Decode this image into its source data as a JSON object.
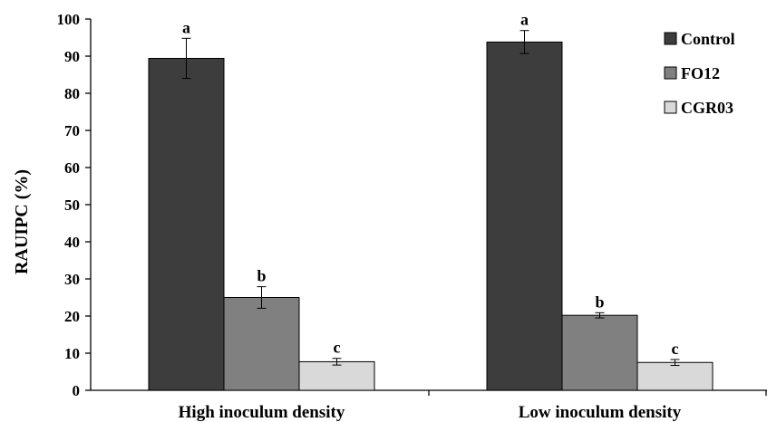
{
  "chart_data": {
    "type": "bar",
    "title": "",
    "xlabel": "",
    "ylabel": "RAUIPC (%)",
    "ylim": [
      0,
      100
    ],
    "yticks": [
      0,
      10,
      20,
      30,
      40,
      50,
      60,
      70,
      80,
      90,
      100
    ],
    "grid": false,
    "legend_position": "top-right",
    "categories": [
      "High inoculum density",
      "Low inoculum density"
    ],
    "series": [
      {
        "name": "Control",
        "color": "#3d3d3d",
        "values": [
          89.4,
          93.8
        ],
        "errors": [
          5.4,
          3.1
        ],
        "letters": [
          "a",
          "a"
        ]
      },
      {
        "name": "FO12",
        "color": "#808080",
        "values": [
          25.0,
          20.2
        ],
        "errors": [
          2.9,
          0.7
        ],
        "letters": [
          "b",
          "b"
        ]
      },
      {
        "name": "CGR03",
        "color": "#d9d9d9",
        "values": [
          7.7,
          7.5
        ],
        "errors": [
          0.9,
          0.8
        ],
        "letters": [
          "c",
          "c"
        ]
      }
    ]
  }
}
